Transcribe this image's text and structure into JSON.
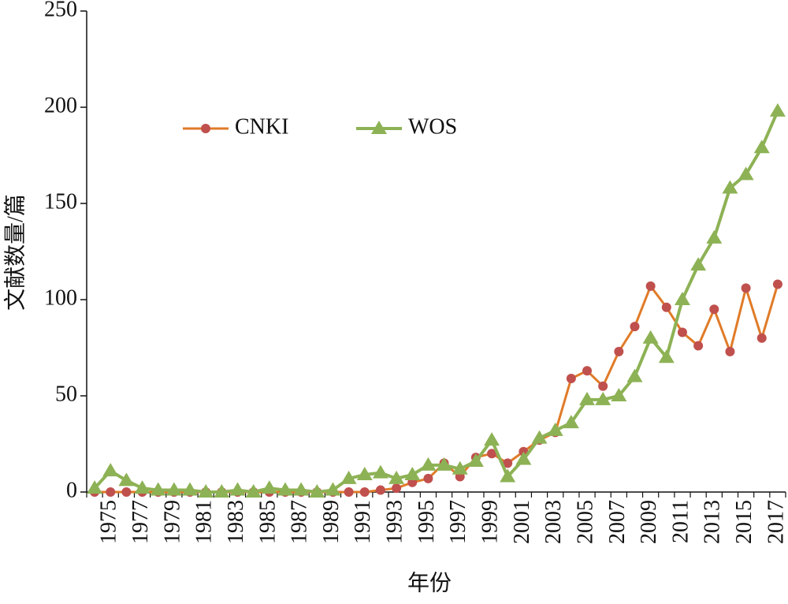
{
  "chart_data": {
    "type": "line",
    "xlabel": "年份",
    "ylabel": "文献数量/篇",
    "categories": [
      null,
      "1975",
      null,
      "1977",
      null,
      "1979",
      null,
      "1981",
      null,
      "1983",
      null,
      "1985",
      null,
      "1987",
      null,
      "1989",
      null,
      "1991",
      null,
      "1993",
      null,
      "1995",
      null,
      "1997",
      null,
      "1999",
      null,
      "2001",
      null,
      "2003",
      null,
      "2005",
      null,
      "2007",
      null,
      "2009",
      null,
      "2011",
      null,
      "2013",
      null,
      "2015",
      null,
      "2017"
    ],
    "series": [
      {
        "name": "CNKI",
        "color": "#e07b28",
        "marker_color": "#c0504d",
        "marker": "circle",
        "values": [
          0,
          0,
          0,
          0,
          0,
          0,
          0,
          0,
          0,
          0,
          0,
          0,
          0,
          0,
          0,
          0,
          0,
          0,
          1,
          2,
          5,
          7,
          15,
          8,
          18,
          20,
          15,
          21,
          27,
          31,
          59,
          63,
          55,
          73,
          86,
          107,
          96,
          83,
          76,
          95,
          73,
          106,
          80,
          108
        ]
      },
      {
        "name": "WOS",
        "color": "#8db255",
        "marker_color": "#8db255",
        "marker": "triangle",
        "values": [
          2,
          11,
          6,
          2,
          1,
          1,
          1,
          0,
          0,
          1,
          0,
          2,
          1,
          1,
          0,
          1,
          7,
          9,
          10,
          7,
          9,
          14,
          14,
          12,
          16,
          27,
          8,
          17,
          28,
          32,
          36,
          48,
          48,
          50,
          60,
          80,
          70,
          100,
          118,
          132,
          158,
          165,
          179,
          198
        ]
      }
    ],
    "ylim": [
      0,
      250
    ],
    "yticks": [
      0,
      50,
      100,
      150,
      200,
      250
    ],
    "legend": "upper left"
  }
}
